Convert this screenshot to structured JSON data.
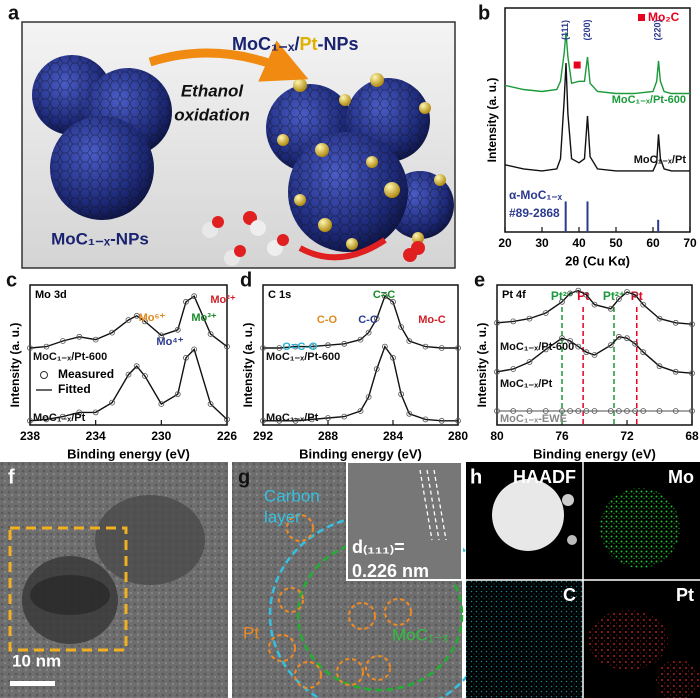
{
  "panels": {
    "a": {
      "letter": "a",
      "title_parts": [
        "MoC₁₋ₓ/",
        "Pt",
        "-NPs"
      ],
      "process_lines": [
        "Ethanol",
        "oxidation"
      ],
      "start_label": "MoC₁₋ₓ-NPs"
    },
    "f": {
      "letter": "f",
      "scale_bar": "10 nm"
    },
    "g": {
      "letter": "g",
      "carbon_label": [
        "Carbon",
        "layer"
      ],
      "pt_label": "Pt",
      "core_label": "MoC₁₋ₓ",
      "d_spacing": "d₍₁₁₁₎=",
      "d_value": "0.226 nm"
    },
    "h": {
      "letter": "h",
      "maps": [
        "HAADF",
        "Mo",
        "C",
        "Pt"
      ]
    }
  },
  "chart_data": [
    {
      "type": "line",
      "letter": "b",
      "xlabel": "2θ (Cu Kα)",
      "ylabel": "Intensity (a. u.)",
      "x": [
        20,
        25,
        30,
        34,
        35,
        36,
        36.5,
        37,
        38,
        40,
        41.5,
        42.3,
        43,
        45,
        50,
        55,
        60,
        61,
        61.5,
        62,
        63,
        65,
        70
      ],
      "xlim": [
        20,
        70
      ],
      "xticks": [
        20,
        30,
        40,
        50,
        60,
        70
      ],
      "ylim": [
        0,
        11
      ],
      "series": [
        {
          "name": "MoC₁₋ₓ/Pt-600",
          "color": "#1a9a3a",
          "values": [
            7.2,
            7.0,
            6.9,
            7.0,
            7.4,
            8.8,
            9.8,
            8.6,
            7.3,
            7.4,
            7.4,
            8.6,
            7.3,
            6.9,
            6.8,
            6.8,
            6.9,
            7.4,
            8.4,
            7.4,
            6.9,
            6.8,
            6.8
          ]
        },
        {
          "name": "MoC₁₋ₓ/Pt",
          "color": "#111111",
          "values": [
            3.3,
            3.1,
            3.0,
            3.1,
            3.6,
            6.5,
            8.3,
            5.8,
            3.6,
            3.4,
            3.6,
            5.7,
            3.7,
            3.1,
            3.0,
            3.0,
            3.0,
            3.4,
            4.8,
            3.6,
            3.1,
            3.0,
            3.0
          ]
        }
      ],
      "reference_peaks": {
        "name": [
          "α-MoC₁₋ₓ",
          "#89-2868"
        ],
        "color": "#2b3a8f",
        "x": [
          36.4,
          42.3,
          61.4
        ],
        "values": [
          1.5,
          1.5,
          0.6
        ],
        "labels": [
          "(111)",
          "(200)",
          "(220)"
        ]
      },
      "impurity": {
        "label": "Mo₂C",
        "color": "#e8001e",
        "x": 39.5,
        "y": 8.2
      }
    },
    {
      "type": "line",
      "letter": "c",
      "label": "Mo 3d",
      "xlabel": "Binding energy (eV)",
      "ylabel": "Intensity (a. u.)",
      "markers": true,
      "x": [
        238,
        237,
        236,
        235,
        234,
        233,
        232,
        231.5,
        231,
        230,
        229,
        228.5,
        228,
        227,
        226
      ],
      "xlim": [
        238,
        226
      ],
      "xticks": [
        238,
        234,
        230,
        226
      ],
      "ylim": [
        0,
        10
      ],
      "series": [
        {
          "name": "MoC₁₋ₓ/Pt-600",
          "color": "#111111",
          "values": [
            5.5,
            5.6,
            6.0,
            6.3,
            6.1,
            6.6,
            7.5,
            7.8,
            7.4,
            6.4,
            6.8,
            8.8,
            9.2,
            6.5,
            5.6
          ]
        },
        {
          "name": "MoC₁₋ₓ/Pt",
          "color": "#111111",
          "values": [
            0.3,
            0.4,
            0.6,
            0.9,
            0.9,
            1.6,
            3.6,
            4.2,
            3.5,
            1.5,
            2.2,
            4.8,
            5.4,
            1.5,
            0.4
          ]
        }
      ],
      "legend": [
        "Measured",
        "Fitted"
      ],
      "annotations": [
        {
          "text": "Mo⁶⁺",
          "color": "#e08a1e"
        },
        {
          "text": "Mo⁴⁺",
          "color": "#2b3a8f"
        },
        {
          "text": "Mo³⁺",
          "color": "#1a8a2a"
        },
        {
          "text": "Mo²⁺",
          "color": "#d0202a"
        }
      ]
    },
    {
      "type": "line",
      "letter": "d",
      "label": "C 1s",
      "xlabel": "Binding energy (eV)",
      "ylabel": "Intensity (a. u.)",
      "markers": true,
      "x": [
        292,
        291,
        290,
        289,
        288,
        287,
        286,
        285.5,
        285,
        284.5,
        284,
        283.5,
        283,
        282,
        281,
        280
      ],
      "xlim": [
        292,
        280
      ],
      "xticks": [
        292,
        288,
        284,
        280
      ],
      "ylim": [
        0,
        10
      ],
      "series": [
        {
          "name": "MoC₁₋ₓ/Pt-600",
          "color": "#111111",
          "values": [
            5.5,
            5.5,
            5.6,
            5.6,
            5.7,
            5.8,
            6.1,
            6.6,
            7.6,
            9.2,
            8.8,
            7.0,
            6.0,
            5.6,
            5.5,
            5.5
          ]
        },
        {
          "name": "MoC₁₋ₓ/Pt",
          "color": "#111111",
          "values": [
            0.3,
            0.3,
            0.3,
            0.4,
            0.5,
            0.6,
            1.0,
            2.0,
            4.0,
            5.6,
            4.8,
            2.2,
            0.8,
            0.4,
            0.3,
            0.3
          ]
        }
      ],
      "annotations": [
        {
          "text": "O=C-O",
          "color": "#2ab0d0"
        },
        {
          "text": "C-O",
          "color": "#e08a1e"
        },
        {
          "text": "C-C",
          "color": "#2b3a8f"
        },
        {
          "text": "C=C",
          "color": "#1a8a2a"
        },
        {
          "text": "Mo-C",
          "color": "#d0202a"
        }
      ]
    },
    {
      "type": "line",
      "letter": "e",
      "label": "Pt 4f",
      "xlabel": "Binding energy (eV)",
      "ylabel": "Intensity (a. u.)",
      "markers": true,
      "x": [
        80,
        79,
        78,
        77,
        76,
        75.5,
        75,
        74.5,
        74,
        73,
        72.5,
        72,
        71.5,
        71,
        70,
        69,
        68
      ],
      "xlim": [
        80,
        68
      ],
      "xticks": [
        80,
        76,
        72,
        68
      ],
      "ylim": [
        0,
        10
      ],
      "series": [
        {
          "name": "MoC₁₋ₓ/Pt-600",
          "color": "#111111",
          "values": [
            7.3,
            7.4,
            7.6,
            8.0,
            8.8,
            9.4,
            9.6,
            9.3,
            8.6,
            8.3,
            9.0,
            9.5,
            9.3,
            8.6,
            7.6,
            7.3,
            7.2
          ]
        },
        {
          "name": "MoC₁₋ₓ/Pt",
          "color": "#111111",
          "values": [
            3.8,
            4.0,
            4.5,
            5.4,
            6.2,
            6.0,
            5.6,
            5.2,
            5.0,
            5.7,
            6.3,
            6.2,
            5.8,
            5.2,
            4.2,
            3.8,
            3.7
          ]
        },
        {
          "name": "MoC₁₋ₓ-EWE",
          "color": "#888888",
          "values": [
            1.0,
            1.0,
            1.0,
            1.0,
            1.0,
            1.0,
            1.0,
            1.0,
            1.0,
            1.0,
            1.0,
            1.0,
            1.0,
            1.0,
            1.0,
            1.0,
            1.0
          ]
        }
      ],
      "reference_lines": [
        {
          "x": 76,
          "label": "Pt²⁺",
          "color": "#1a9a3a"
        },
        {
          "x": 74.7,
          "label": "Pt",
          "color": "#e8001e"
        },
        {
          "x": 72.8,
          "label": "Pt²⁺",
          "color": "#1a9a3a"
        },
        {
          "x": 71.4,
          "label": "Pt",
          "color": "#e8001e"
        }
      ]
    }
  ]
}
